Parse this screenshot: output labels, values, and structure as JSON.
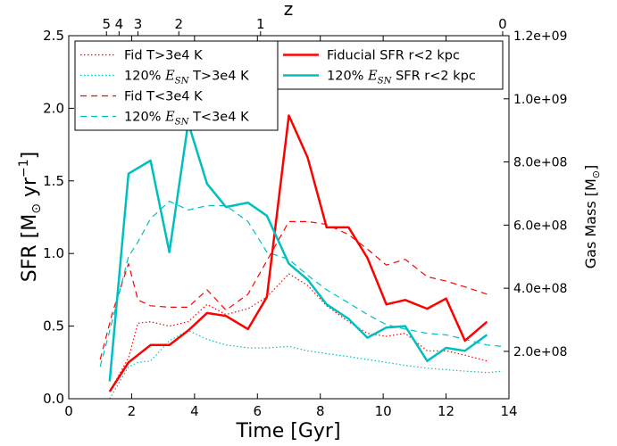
{
  "chart_data": {
    "type": "line",
    "xlabel": "Time [Gyr]",
    "ylabel": "SFR [M",
    "ylabel_sub": "⊙",
    "ylabel_mid": " yr",
    "ylabel_sup": "−1",
    "ylabel_end": "]",
    "y2label": "Gas Mass [M",
    "y2label_sub": "⊙",
    "y2label_end": "]",
    "x2label": "z",
    "xlim": [
      0,
      14
    ],
    "ylim": [
      0,
      2.5
    ],
    "y2lim": [
      50000000.0,
      1200000000.0
    ],
    "xticks": [
      0,
      2,
      4,
      6,
      8,
      10,
      12,
      14
    ],
    "yticks": [
      0.0,
      0.5,
      1.0,
      1.5,
      2.0,
      2.5
    ],
    "y2ticks": [
      200000000.0,
      400000000.0,
      600000000.0,
      800000000.0,
      1000000000.0,
      1200000000.0
    ],
    "y2ticklabels": [
      "2.0e+08",
      "4.0e+08",
      "6.0e+08",
      "8.0e+08",
      "1.0e+09",
      "1.2e+09"
    ],
    "x2ticks": [
      {
        "label": "5",
        "time": 1.2
      },
      {
        "label": "4",
        "time": 1.6
      },
      {
        "label": "3",
        "time": 2.2
      },
      {
        "label": "2",
        "time": 3.5
      },
      {
        "label": "1",
        "time": 6.1
      },
      {
        "label": "0",
        "time": 13.8
      }
    ],
    "grid": false,
    "legend_left_position": "upper-left",
    "legend_right_position": "upper-center",
    "series": [
      {
        "name": "Fid T>3e4 K",
        "axis": "left",
        "color": "#ff0000",
        "style": "dotted",
        "width": 1.2,
        "x": [
          1.3,
          1.9,
          2.2,
          2.6,
          3.2,
          3.8,
          4.4,
          5.0,
          5.7,
          6.3,
          7.0,
          7.6,
          8.2,
          8.9,
          9.5,
          10.1,
          10.7,
          11.4,
          12.0,
          12.6,
          13.3
        ],
        "y": [
          0.05,
          0.28,
          0.52,
          0.53,
          0.5,
          0.53,
          0.65,
          0.58,
          0.62,
          0.7,
          0.86,
          0.78,
          0.64,
          0.53,
          0.45,
          0.43,
          0.45,
          0.33,
          0.33,
          0.3,
          0.26
        ]
      },
      {
        "name": "120% E_SN T>3e4 K",
        "axis": "left",
        "color": "#00bfbf",
        "style": "dotted",
        "width": 1.2,
        "x": [
          1.3,
          1.9,
          2.2,
          2.6,
          3.2,
          3.8,
          4.4,
          5.0,
          5.7,
          6.3,
          7.0,
          7.6,
          8.2,
          8.9,
          9.5,
          10.1,
          10.7,
          11.4,
          12.0,
          12.6,
          13.3,
          13.8
        ],
        "y": [
          0.0,
          0.22,
          0.25,
          0.26,
          0.4,
          0.47,
          0.41,
          0.37,
          0.35,
          0.35,
          0.36,
          0.33,
          0.31,
          0.29,
          0.27,
          0.25,
          0.23,
          0.21,
          0.2,
          0.19,
          0.18,
          0.19
        ]
      },
      {
        "name": "Fid T<3e4 K",
        "axis": "left",
        "color": "#ff0000",
        "style": "dashed",
        "width": 1.2,
        "x": [
          1.0,
          1.4,
          1.9,
          2.2,
          2.6,
          3.2,
          3.8,
          4.4,
          5.0,
          5.7,
          6.3,
          7.0,
          7.6,
          8.2,
          8.9,
          9.5,
          10.1,
          10.7,
          11.4,
          12.0,
          12.6,
          13.3
        ],
        "y": [
          0.27,
          0.6,
          0.93,
          0.68,
          0.64,
          0.63,
          0.63,
          0.75,
          0.61,
          0.72,
          0.95,
          1.22,
          1.22,
          1.2,
          1.13,
          1.03,
          0.92,
          0.96,
          0.84,
          0.81,
          0.77,
          0.72
        ]
      },
      {
        "name": "120% E_SN T<3e4 K",
        "axis": "left",
        "color": "#00bfbf",
        "style": "dashed",
        "width": 1.2,
        "x": [
          1.0,
          1.4,
          1.9,
          2.2,
          2.6,
          3.2,
          3.8,
          4.4,
          5.0,
          5.7,
          6.3,
          7.0,
          7.6,
          8.2,
          8.9,
          9.5,
          10.1,
          10.7,
          11.4,
          12.0,
          12.6,
          13.3,
          13.8
        ],
        "y": [
          0.22,
          0.55,
          0.98,
          1.08,
          1.24,
          1.36,
          1.3,
          1.33,
          1.33,
          1.22,
          1.01,
          0.96,
          0.85,
          0.75,
          0.66,
          0.58,
          0.51,
          0.48,
          0.45,
          0.44,
          0.41,
          0.37,
          0.36
        ]
      },
      {
        "name": "Fiducial SFR r<2 kpc",
        "axis": "left",
        "color": "#ff0000",
        "style": "solid",
        "width": 2.5,
        "x": [
          1.3,
          1.9,
          2.6,
          3.2,
          3.8,
          4.4,
          5.0,
          5.7,
          6.3,
          7.0,
          7.6,
          8.2,
          8.9,
          9.5,
          10.1,
          10.7,
          11.4,
          12.0,
          12.6,
          13.3
        ],
        "y": [
          0.05,
          0.25,
          0.37,
          0.37,
          0.47,
          0.59,
          0.57,
          0.48,
          0.7,
          1.95,
          1.66,
          1.18,
          1.18,
          0.97,
          0.65,
          0.68,
          0.62,
          0.69,
          0.4,
          0.53
        ]
      },
      {
        "name": "120% E_SN SFR r<2 kpc",
        "axis": "left",
        "color": "#00bfbf",
        "style": "solid",
        "width": 2.5,
        "x": [
          1.3,
          1.9,
          2.6,
          3.2,
          3.8,
          4.4,
          5.0,
          5.7,
          6.3,
          7.0,
          7.6,
          8.2,
          8.9,
          9.5,
          10.1,
          10.7,
          11.4,
          12.0,
          12.6,
          13.3
        ],
        "y": [
          0.12,
          1.55,
          1.64,
          1.01,
          1.9,
          1.48,
          1.32,
          1.35,
          1.26,
          0.93,
          0.82,
          0.65,
          0.55,
          0.42,
          0.49,
          0.5,
          0.26,
          0.35,
          0.33,
          0.44
        ]
      }
    ],
    "legend_left": [
      {
        "label": "Fid T>3e4 K",
        "color": "#ff0000",
        "style": "dotted",
        "width": 1.2
      },
      {
        "label_pre": "120% ",
        "label_e": "E",
        "label_sub": "SN",
        "label_post": " T>3e4 K",
        "color": "#00bfbf",
        "style": "dotted",
        "width": 1.2
      },
      {
        "label": "Fid T<3e4 K",
        "color": "#ff0000",
        "style": "dashed",
        "width": 1.2
      },
      {
        "label_pre": "120% ",
        "label_e": "E",
        "label_sub": "SN",
        "label_post": " T<3e4 K",
        "color": "#00bfbf",
        "style": "dashed",
        "width": 1.2
      }
    ],
    "legend_right": [
      {
        "label": "Fiducial SFR r<2 kpc",
        "color": "#ff0000",
        "style": "solid",
        "width": 2.5
      },
      {
        "label_pre": "120% ",
        "label_e": "E",
        "label_sub": "SN",
        "label_post": " SFR r<2 kpc",
        "color": "#00bfbf",
        "style": "solid",
        "width": 2.5
      }
    ]
  }
}
